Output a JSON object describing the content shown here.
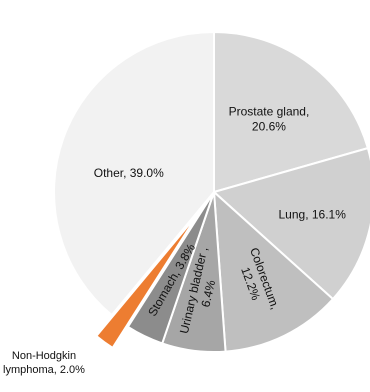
{
  "chart_data": {
    "type": "pie",
    "title": "",
    "slices": [
      {
        "name": "Prostate gland",
        "value": 20.6,
        "color": "#d9d9d9",
        "label_lines": [
          "Prostate gland,",
          "20.6%"
        ]
      },
      {
        "name": "Lung",
        "value": 16.1,
        "color": "#d0d0d0",
        "label_lines": [
          "Lung, 16.1%"
        ]
      },
      {
        "name": "Colorectum",
        "value": 12.2,
        "color": "#bfbfbf",
        "label_lines": [
          "Colorectum,",
          "12.2%"
        ]
      },
      {
        "name": "Urinary bladder",
        "value": 6.4,
        "color": "#a6a6a6",
        "label_lines": [
          "Urinary bladder ,",
          "6.4%"
        ]
      },
      {
        "name": "Stomach",
        "value": 3.8,
        "color": "#8c8c8c",
        "label_lines": [
          "Stomach, 3.8%"
        ]
      },
      {
        "name": "Non-Hodgkin lymphoma",
        "value": 2.0,
        "color": "#ed7d31",
        "label_lines": [
          "Non-Hodgkin",
          "lymphoma, 2.0%"
        ],
        "exploded": true
      },
      {
        "name": "Other",
        "value": 39.0,
        "color": "#f2f2f2",
        "label_lines": [
          "Other, 39.0%"
        ]
      }
    ],
    "start": "12 o'clock",
    "direction": "clockwise",
    "legend": "none"
  }
}
